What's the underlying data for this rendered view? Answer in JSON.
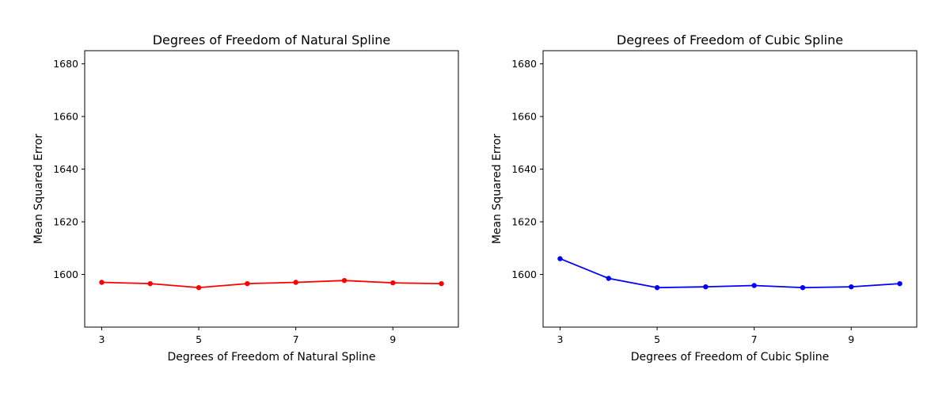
{
  "chart_data": [
    {
      "type": "line",
      "title": "Degrees of Freedom of Natural Spline",
      "xlabel": "Degrees of Freedom of Natural Spline",
      "ylabel": "Mean Squared Error",
      "color": "#ff0000",
      "x": [
        3,
        4,
        5,
        6,
        7,
        8,
        9,
        10
      ],
      "values": [
        1597.0,
        1596.5,
        1595.0,
        1596.5,
        1597.0,
        1597.7,
        1596.8,
        1596.5
      ],
      "xlim": [
        2.65,
        10.35
      ],
      "ylim": [
        1580,
        1685
      ],
      "xticks": [
        3,
        5,
        7,
        9
      ],
      "yticks": [
        1600,
        1620,
        1640,
        1660,
        1680
      ],
      "grid": false
    },
    {
      "type": "line",
      "title": "Degrees of Freedom of Cubic Spline",
      "xlabel": "Degrees of Freedom of Cubic Spline",
      "ylabel": "Mean Squared Error",
      "color": "#0000ff",
      "x": [
        3,
        4,
        5,
        6,
        7,
        8,
        9,
        10
      ],
      "values": [
        1606.0,
        1598.5,
        1595.0,
        1595.3,
        1595.8,
        1595.0,
        1595.3,
        1596.5
      ],
      "xlim": [
        2.65,
        10.35
      ],
      "ylim": [
        1580,
        1685
      ],
      "xticks": [
        3,
        5,
        7,
        9
      ],
      "yticks": [
        1600,
        1620,
        1640,
        1660,
        1680
      ],
      "grid": false
    }
  ]
}
